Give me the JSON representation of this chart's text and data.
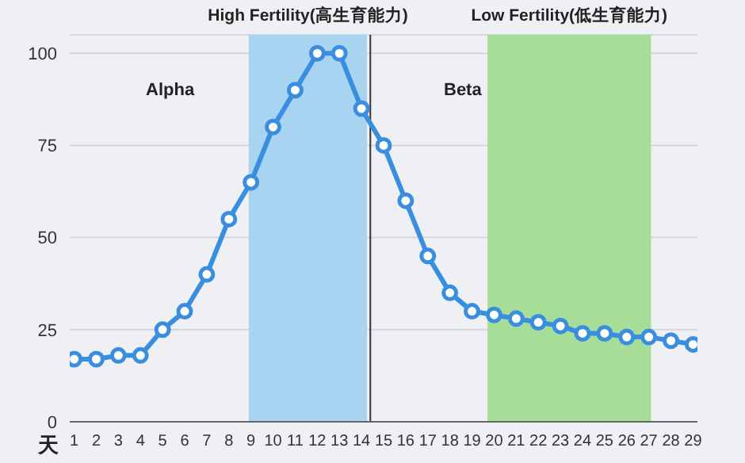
{
  "chart_data": {
    "type": "line",
    "xlabel": "天",
    "x": [
      1,
      2,
      3,
      4,
      5,
      6,
      7,
      8,
      9,
      10,
      11,
      12,
      13,
      14,
      15,
      16,
      17,
      18,
      19,
      20,
      21,
      22,
      23,
      24,
      25,
      26,
      27,
      28,
      29
    ],
    "series": [
      {
        "color": "#3a8ee0",
        "values": [
          17,
          17,
          18,
          18,
          25,
          30,
          40,
          55,
          65,
          80,
          90,
          100,
          100,
          85,
          75,
          60,
          45,
          35,
          30,
          29,
          28,
          27,
          26,
          24,
          24,
          23,
          23,
          22,
          21
        ]
      }
    ],
    "xlim": [
      0.8,
      29.2
    ],
    "xticks": [
      1,
      2,
      3,
      4,
      5,
      6,
      7,
      8,
      9,
      10,
      11,
      12,
      13,
      14,
      15,
      16,
      17,
      18,
      19,
      20,
      21,
      22,
      23,
      24,
      25,
      26,
      27,
      28,
      29
    ],
    "ylim": [
      0,
      105
    ],
    "yticks": [
      0,
      25,
      50,
      75,
      100
    ],
    "grid": "y",
    "marker": "circle",
    "line_style": "solid",
    "bands": [
      {
        "axis": "x",
        "from": 8.9,
        "to": 14.25,
        "label": "High Fertility(高生育能力)",
        "color": "#a8d4f2"
      },
      {
        "axis": "x",
        "from": 19.7,
        "to": 27.1,
        "label": "Low Fertility(低生育能力)",
        "color": "#a6dd98"
      }
    ],
    "ref_lines": [
      {
        "axis": "x",
        "value": 14.4,
        "color": "#333333"
      }
    ],
    "annotations": [
      "Alpha",
      "Beta"
    ]
  }
}
